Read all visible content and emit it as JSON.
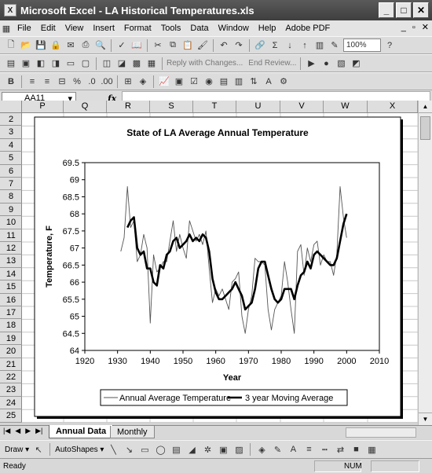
{
  "window": {
    "title": "Microsoft Excel - LA Historical Temperatures.xls"
  },
  "menu": [
    "File",
    "Edit",
    "View",
    "Insert",
    "Format",
    "Tools",
    "Data",
    "Window",
    "Help",
    "Adobe PDF"
  ],
  "toolbar": {
    "zoom": "100%",
    "reply_label": "Reply with Changes...",
    "end_review_label": "End Review..."
  },
  "formula_bar": {
    "name_box": "AA11",
    "fx_label": "fx",
    "formula": ""
  },
  "columns": [
    "P",
    "Q",
    "R",
    "S",
    "T",
    "U",
    "V",
    "W",
    "X"
  ],
  "rows": [
    "2",
    "3",
    "4",
    "5",
    "6",
    "7",
    "8",
    "9",
    "10",
    "11",
    "12",
    "13",
    "14",
    "15",
    "16",
    "17",
    "18",
    "19",
    "20",
    "21",
    "22",
    "23",
    "24",
    "25"
  ],
  "sheet_tabs": [
    {
      "label": "Annual Data",
      "active": true
    },
    {
      "label": "Monthly",
      "active": false
    }
  ],
  "drawing_toolbar": {
    "draw_label": "Draw",
    "autoshapes_label": "AutoShapes"
  },
  "status": {
    "left": "Ready",
    "num": "NUM"
  },
  "chart_data": {
    "type": "line",
    "title": "State of LA Average Annual Temperature",
    "xlabel": "Year",
    "ylabel": "Temperature, F",
    "xlim": [
      1920,
      2010
    ],
    "ylim": [
      64,
      69.5
    ],
    "xticks": [
      1920,
      1930,
      1940,
      1950,
      1960,
      1970,
      1980,
      1990,
      2000,
      2010
    ],
    "yticks": [
      64,
      64.5,
      65,
      65.5,
      66,
      66.5,
      67,
      67.5,
      68,
      68.5,
      69,
      69.5
    ],
    "legend_position": "bottom",
    "series": [
      {
        "name": "Annual Average Temperature",
        "color": "#555555",
        "x": [
          1931,
          1932,
          1933,
          1934,
          1935,
          1936,
          1937,
          1938,
          1939,
          1940,
          1941,
          1942,
          1943,
          1944,
          1945,
          1946,
          1947,
          1948,
          1949,
          1950,
          1951,
          1952,
          1953,
          1954,
          1955,
          1956,
          1957,
          1958,
          1959,
          1960,
          1961,
          1962,
          1963,
          1964,
          1965,
          1966,
          1967,
          1968,
          1969,
          1970,
          1971,
          1972,
          1973,
          1974,
          1975,
          1976,
          1977,
          1978,
          1979,
          1980,
          1981,
          1982,
          1983,
          1984,
          1985,
          1986,
          1987,
          1988,
          1989,
          1990,
          1991,
          1992,
          1993,
          1994,
          1995,
          1996,
          1997,
          1998,
          1999,
          2000
        ],
        "y": [
          66.9,
          67.3,
          68.8,
          67.6,
          67.8,
          66.6,
          66.8,
          67.4,
          67.0,
          64.8,
          66.8,
          66.3,
          66.4,
          66.6,
          66.6,
          67.2,
          67.8,
          66.9,
          67.4,
          67.0,
          66.7,
          67.8,
          67.5,
          67.2,
          67.4,
          67.1,
          67.5,
          66.4,
          65.4,
          65.8,
          65.6,
          65.8,
          65.5,
          65.2,
          66.0,
          66.1,
          66.3,
          65.0,
          64.5,
          65.2,
          65.6,
          66.7,
          66.6,
          66.6,
          66.5,
          65.2,
          64.6,
          65.2,
          65.4,
          65.6,
          66.6,
          66.0,
          65.2,
          64.5,
          66.9,
          67.1,
          66.2,
          67.0,
          66.6,
          67.1,
          67.2,
          66.5,
          66.8,
          66.6,
          66.6,
          66.2,
          66.8,
          68.8,
          67.9,
          67.3
        ]
      },
      {
        "name": "3 year Moving Average",
        "color": "#000000",
        "x": [
          1933,
          1934,
          1935,
          1936,
          1937,
          1938,
          1939,
          1940,
          1941,
          1942,
          1943,
          1944,
          1945,
          1946,
          1947,
          1948,
          1949,
          1950,
          1951,
          1952,
          1953,
          1954,
          1955,
          1956,
          1957,
          1958,
          1959,
          1960,
          1961,
          1962,
          1963,
          1964,
          1965,
          1966,
          1967,
          1968,
          1969,
          1970,
          1971,
          1972,
          1973,
          1974,
          1975,
          1976,
          1977,
          1978,
          1979,
          1980,
          1981,
          1982,
          1983,
          1984,
          1985,
          1986,
          1987,
          1988,
          1989,
          1990,
          1991,
          1992,
          1993,
          1994,
          1995,
          1996,
          1997,
          1998,
          1999,
          2000
        ],
        "y": [
          67.6,
          67.8,
          67.9,
          67.0,
          66.8,
          66.9,
          66.4,
          66.4,
          66.0,
          65.9,
          66.5,
          66.4,
          66.8,
          66.9,
          67.2,
          67.3,
          67.0,
          67.1,
          67.2,
          67.4,
          67.2,
          67.3,
          67.2,
          67.4,
          67.3,
          66.9,
          66.1,
          65.7,
          65.5,
          65.5,
          65.6,
          65.7,
          65.8,
          66.0,
          65.8,
          65.6,
          65.2,
          65.3,
          65.4,
          65.8,
          66.4,
          66.6,
          66.6,
          66.2,
          65.8,
          65.5,
          65.4,
          65.5,
          65.8,
          65.8,
          65.8,
          65.5,
          65.9,
          66.2,
          66.3,
          66.6,
          66.4,
          66.8,
          66.9,
          66.8,
          66.7,
          66.6,
          66.5,
          66.5,
          66.7,
          67.2,
          67.7,
          68.0
        ]
      }
    ]
  }
}
